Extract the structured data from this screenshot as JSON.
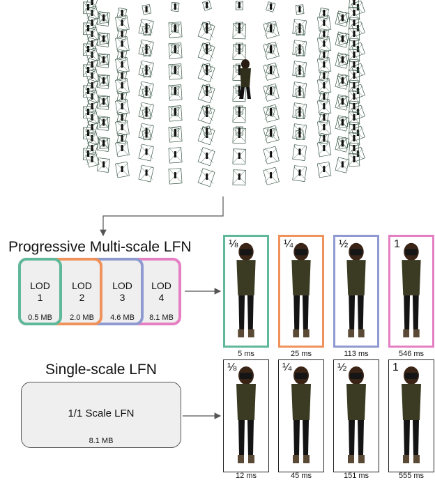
{
  "colors": {
    "lod1": "#5fb89a",
    "lod2": "#f0925b",
    "lod3": "#8f9bd0",
    "lod4": "#e57fc4",
    "box_fill": "#efefef",
    "black": "#111111"
  },
  "progressive": {
    "title": "Progressive Multi-scale LFN",
    "lods": [
      {
        "label": "LOD",
        "num": "1",
        "size": "0.5 MB"
      },
      {
        "label": "LOD",
        "num": "2",
        "size": "2.0 MB"
      },
      {
        "label": "LOD",
        "num": "3",
        "size": "4.6 MB"
      },
      {
        "label": "LOD",
        "num": "4",
        "size": "8.1 MB"
      }
    ],
    "panels": [
      {
        "scale": "⅛",
        "time": "5 ms"
      },
      {
        "scale": "¼",
        "time": "25 ms"
      },
      {
        "scale": "½",
        "time": "113 ms"
      },
      {
        "scale": "1",
        "time": "546 ms"
      }
    ]
  },
  "single": {
    "title": "Single-scale LFN",
    "box_label": "1/1 Scale LFN",
    "size": "8.1 MB",
    "panels": [
      {
        "scale": "⅛",
        "time": "12 ms"
      },
      {
        "scale": "¼",
        "time": "45 ms"
      },
      {
        "scale": "½",
        "time": "151 ms"
      },
      {
        "scale": "1",
        "time": "555 ms"
      }
    ]
  }
}
